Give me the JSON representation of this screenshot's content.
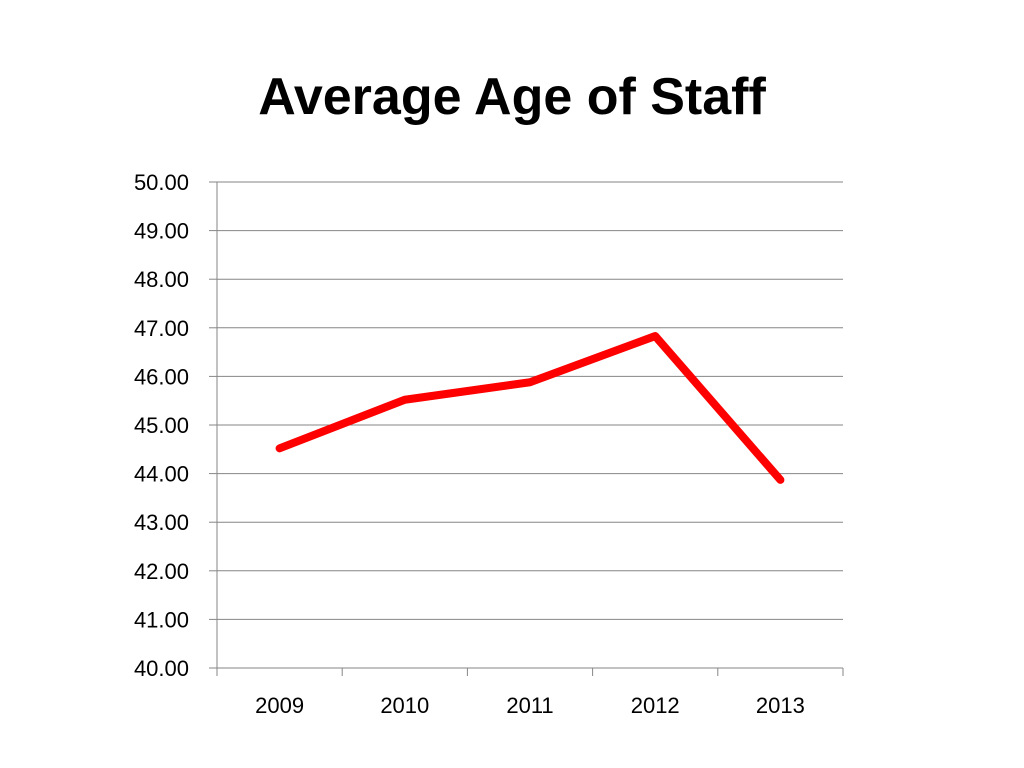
{
  "chart_data": {
    "type": "line",
    "title": "Average Age of Staff",
    "xlabel": "",
    "ylabel": "",
    "categories": [
      "2009",
      "2010",
      "2011",
      "2012",
      "2013"
    ],
    "series": [
      {
        "values": [
          44.52,
          45.52,
          45.88,
          46.83,
          43.87
        ],
        "color": "#ff0000"
      }
    ],
    "ylim": [
      40.0,
      50.0
    ],
    "yticks": [
      "40.00",
      "41.00",
      "42.00",
      "43.00",
      "44.00",
      "45.00",
      "46.00",
      "47.00",
      "48.00",
      "49.00",
      "50.00"
    ],
    "grid": true,
    "legend": "none",
    "gridline_color": "#868686",
    "axis_color": "#868686"
  }
}
